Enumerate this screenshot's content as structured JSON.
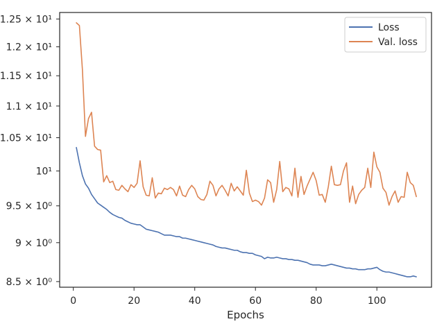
{
  "chart_data": {
    "type": "line",
    "title": "",
    "xlabel": "Epochs",
    "ylabel": "",
    "xlim": [
      -4.5,
      118
    ],
    "ylim": [
      8.43,
      12.62
    ],
    "y_scale": "log",
    "grid": false,
    "legend_position": "top-right",
    "x_ticks": [
      {
        "value": 0,
        "label": "0"
      },
      {
        "value": 20,
        "label": "20"
      },
      {
        "value": 40,
        "label": "40"
      },
      {
        "value": 60,
        "label": "60"
      },
      {
        "value": 80,
        "label": "80"
      },
      {
        "value": 100,
        "label": "100"
      }
    ],
    "y_ticks": [
      {
        "value": 8.5,
        "label": "8.5 × 10⁰"
      },
      {
        "value": 9,
        "label": "9 × 10⁰"
      },
      {
        "value": 9.5,
        "label": "9.5 × 10⁰"
      },
      {
        "value": 10,
        "label": "10¹"
      },
      {
        "value": 10.5,
        "label": "1.05 × 10¹"
      },
      {
        "value": 11,
        "label": "1.1 × 10¹"
      },
      {
        "value": 11.5,
        "label": "1.15 × 10¹"
      },
      {
        "value": 12,
        "label": "1.2 × 10¹"
      },
      {
        "value": 12.5,
        "label": "1.25 × 10¹"
      }
    ],
    "series": [
      {
        "name": "Loss",
        "color": "#4c72b0",
        "x": [
          1,
          2,
          3,
          4,
          5,
          6,
          7,
          8,
          9,
          10,
          11,
          12,
          13,
          14,
          15,
          16,
          17,
          18,
          19,
          20,
          21,
          22,
          23,
          24,
          25,
          26,
          27,
          28,
          29,
          30,
          31,
          32,
          33,
          34,
          35,
          36,
          37,
          38,
          39,
          40,
          41,
          42,
          43,
          44,
          45,
          46,
          47,
          48,
          49,
          50,
          51,
          52,
          53,
          54,
          55,
          56,
          57,
          58,
          59,
          60,
          61,
          62,
          63,
          64,
          65,
          66,
          67,
          68,
          69,
          70,
          71,
          72,
          73,
          74,
          75,
          76,
          77,
          78,
          79,
          80,
          81,
          82,
          83,
          84,
          85,
          86,
          87,
          88,
          89,
          90,
          91,
          92,
          93,
          94,
          95,
          96,
          97,
          98,
          99,
          100,
          101,
          102,
          103,
          104,
          105,
          106,
          107,
          108,
          109,
          110,
          111,
          112,
          113
        ],
        "values": [
          10.35,
          10.12,
          9.93,
          9.81,
          9.75,
          9.66,
          9.6,
          9.54,
          9.51,
          9.48,
          9.45,
          9.41,
          9.38,
          9.36,
          9.34,
          9.33,
          9.3,
          9.28,
          9.26,
          9.25,
          9.24,
          9.24,
          9.21,
          9.18,
          9.17,
          9.16,
          9.15,
          9.14,
          9.12,
          9.1,
          9.1,
          9.1,
          9.09,
          9.08,
          9.08,
          9.06,
          9.06,
          9.05,
          9.04,
          9.03,
          9.02,
          9.01,
          9.0,
          8.99,
          8.98,
          8.97,
          8.95,
          8.94,
          8.93,
          8.93,
          8.92,
          8.91,
          8.9,
          8.9,
          8.88,
          8.87,
          8.87,
          8.86,
          8.86,
          8.84,
          8.83,
          8.82,
          8.79,
          8.81,
          8.8,
          8.8,
          8.81,
          8.8,
          8.79,
          8.79,
          8.78,
          8.78,
          8.77,
          8.77,
          8.76,
          8.75,
          8.74,
          8.72,
          8.71,
          8.71,
          8.71,
          8.7,
          8.7,
          8.71,
          8.72,
          8.71,
          8.7,
          8.69,
          8.68,
          8.67,
          8.67,
          8.66,
          8.66,
          8.65,
          8.65,
          8.65,
          8.66,
          8.66,
          8.67,
          8.68,
          8.65,
          8.63,
          8.62,
          8.62,
          8.61,
          8.6,
          8.59,
          8.58,
          8.57,
          8.56,
          8.56,
          8.57,
          8.56
        ]
      },
      {
        "name": "Val. loss",
        "color": "#dd8452",
        "x": [
          1,
          2,
          3,
          4,
          5,
          6,
          7,
          8,
          9,
          10,
          11,
          12,
          13,
          14,
          15,
          16,
          17,
          18,
          19,
          20,
          21,
          22,
          23,
          24,
          25,
          26,
          27,
          28,
          29,
          30,
          31,
          32,
          33,
          34,
          35,
          36,
          37,
          38,
          39,
          40,
          41,
          42,
          43,
          44,
          45,
          46,
          47,
          48,
          49,
          50,
          51,
          52,
          53,
          54,
          55,
          56,
          57,
          58,
          59,
          60,
          61,
          62,
          63,
          64,
          65,
          66,
          67,
          68,
          69,
          70,
          71,
          72,
          73,
          74,
          75,
          76,
          77,
          78,
          79,
          80,
          81,
          82,
          83,
          84,
          85,
          86,
          87,
          88,
          89,
          90,
          91,
          92,
          93,
          94,
          95,
          96,
          97,
          98,
          99,
          100,
          101,
          102,
          103,
          104,
          105,
          106,
          107,
          108,
          109,
          110,
          111,
          112,
          113
        ],
        "values": [
          12.43,
          12.38,
          11.6,
          10.52,
          10.8,
          10.9,
          10.37,
          10.32,
          10.31,
          9.84,
          9.93,
          9.83,
          9.85,
          9.73,
          9.72,
          9.79,
          9.74,
          9.7,
          9.8,
          9.76,
          9.82,
          10.15,
          9.77,
          9.65,
          9.64,
          9.9,
          9.61,
          9.68,
          9.67,
          9.75,
          9.73,
          9.76,
          9.73,
          9.64,
          9.78,
          9.65,
          9.63,
          9.73,
          9.79,
          9.74,
          9.63,
          9.59,
          9.58,
          9.66,
          9.85,
          9.79,
          9.64,
          9.74,
          9.79,
          9.72,
          9.64,
          9.82,
          9.71,
          9.77,
          9.71,
          9.65,
          10.01,
          9.68,
          9.56,
          9.58,
          9.56,
          9.51,
          9.61,
          9.87,
          9.83,
          9.55,
          9.73,
          10.14,
          9.7,
          9.76,
          9.74,
          9.64,
          10.04,
          9.62,
          9.92,
          9.66,
          9.78,
          9.88,
          9.98,
          9.86,
          9.65,
          9.66,
          9.55,
          9.77,
          10.07,
          9.8,
          9.79,
          9.8,
          10.0,
          10.12,
          9.55,
          9.78,
          9.53,
          9.66,
          9.72,
          9.76,
          10.04,
          9.76,
          10.28,
          10.06,
          9.98,
          9.75,
          9.69,
          9.51,
          9.63,
          9.71,
          9.55,
          9.63,
          9.62,
          9.98,
          9.83,
          9.79,
          9.63
        ]
      }
    ]
  }
}
